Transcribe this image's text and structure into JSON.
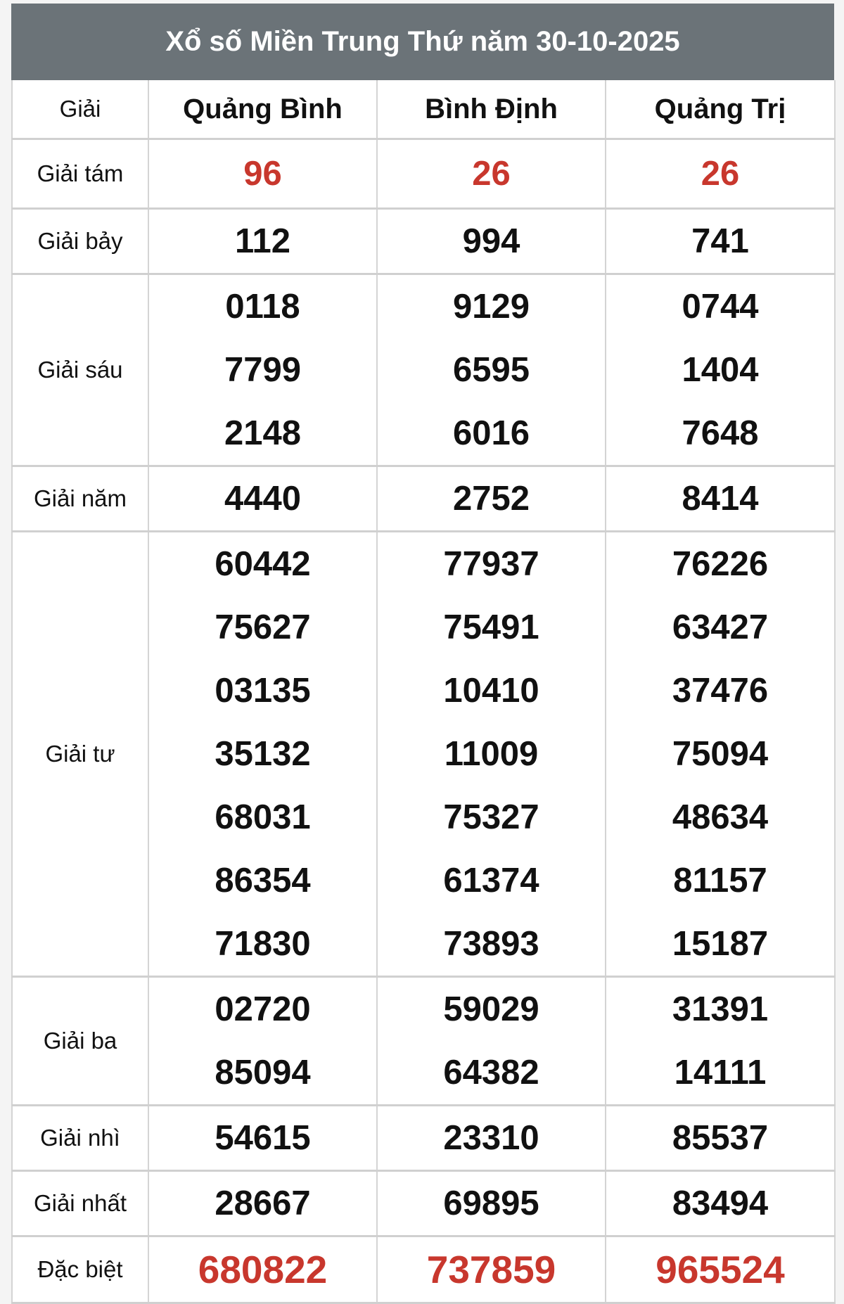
{
  "title": "Xổ số Miền Trung Thứ năm 30-10-2025",
  "header": {
    "label": "Giải",
    "provinces": [
      "Quảng Bình",
      "Bình Định",
      "Quảng Trị"
    ]
  },
  "colors": {
    "header_bg": "#6b7378",
    "highlight": "#c8372d"
  },
  "rows": [
    {
      "label": "Giải tám",
      "highlight": true,
      "values": [
        [
          "96"
        ],
        [
          "26"
        ],
        [
          "26"
        ]
      ]
    },
    {
      "label": "Giải bảy",
      "values": [
        [
          "112"
        ],
        [
          "994"
        ],
        [
          "741"
        ]
      ]
    },
    {
      "label": "Giải sáu",
      "values": [
        [
          "0118",
          "7799",
          "2148"
        ],
        [
          "9129",
          "6595",
          "6016"
        ],
        [
          "0744",
          "1404",
          "7648"
        ]
      ]
    },
    {
      "label": "Giải năm",
      "values": [
        [
          "4440"
        ],
        [
          "2752"
        ],
        [
          "8414"
        ]
      ]
    },
    {
      "label": "Giải tư",
      "values": [
        [
          "60442",
          "75627",
          "03135",
          "35132",
          "68031",
          "86354",
          "71830"
        ],
        [
          "77937",
          "75491",
          "10410",
          "11009",
          "75327",
          "61374",
          "73893"
        ],
        [
          "76226",
          "63427",
          "37476",
          "75094",
          "48634",
          "81157",
          "15187"
        ]
      ]
    },
    {
      "label": "Giải ba",
      "values": [
        [
          "02720",
          "85094"
        ],
        [
          "59029",
          "64382"
        ],
        [
          "31391",
          "14111"
        ]
      ]
    },
    {
      "label": "Giải nhì",
      "values": [
        [
          "54615"
        ],
        [
          "23310"
        ],
        [
          "85537"
        ]
      ]
    },
    {
      "label": "Giải nhất",
      "values": [
        [
          "28667"
        ],
        [
          "69895"
        ],
        [
          "83494"
        ]
      ]
    },
    {
      "label": "Đặc biệt",
      "highlight": true,
      "special": true,
      "values": [
        [
          "680822"
        ],
        [
          "737859"
        ],
        [
          "965524"
        ]
      ]
    }
  ]
}
